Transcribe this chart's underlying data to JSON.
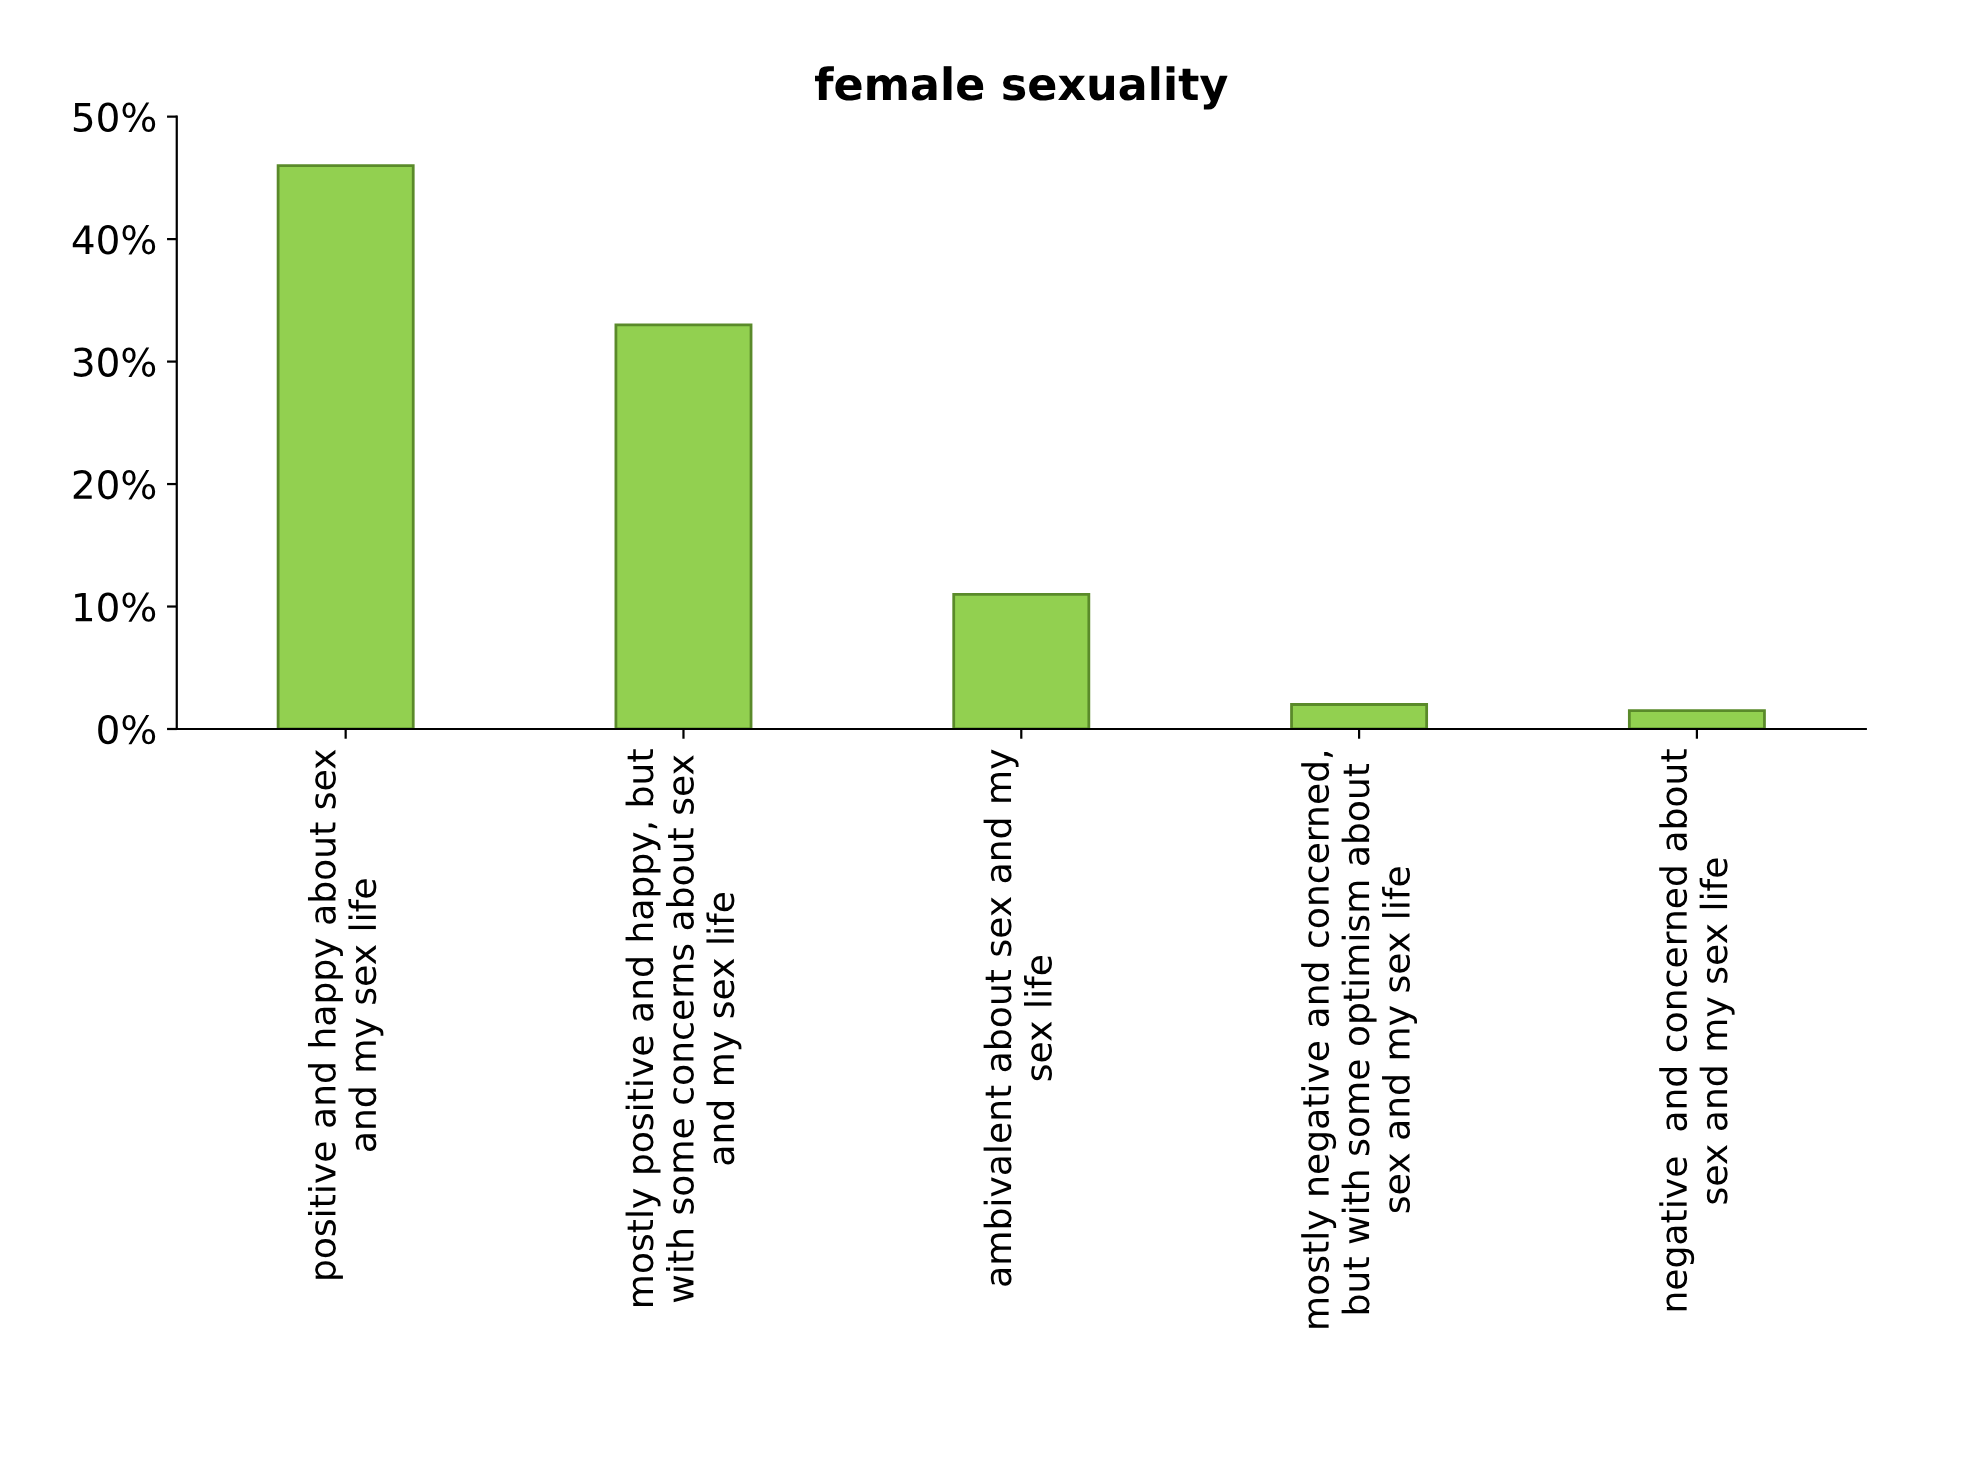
{
  "chart_data": {
    "type": "bar",
    "title": "female sexuality",
    "categories": [
      "positive and happy about sex\nand my sex life",
      "mostly positive and happy, but\nwith some concerns about sex\nand my sex life",
      "ambivalent about sex and my\nsex life",
      "mostly negative and concerned,\nbut with some optimism about\nsex and my sex life",
      "negative  and concerned about\nsex and my sex life"
    ],
    "values": [
      46,
      33,
      11,
      2,
      1.5
    ],
    "color": "#92d050",
    "ylim": [
      0,
      50
    ],
    "yticks": [
      {
        "value": 0,
        "label": "0%"
      },
      {
        "value": 10,
        "label": "10%"
      },
      {
        "value": 20,
        "label": "20%"
      },
      {
        "value": 30,
        "label": "30%"
      },
      {
        "value": 40,
        "label": "40%"
      },
      {
        "value": 50,
        "label": "50%"
      }
    ],
    "grid": false
  }
}
